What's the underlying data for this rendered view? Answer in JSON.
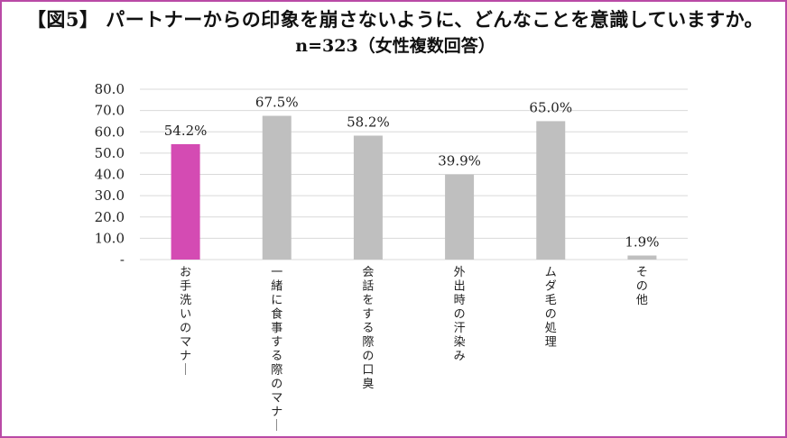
{
  "title": "【図5】 パートナーからの印象を崩さないように、どんなことを意識していますか。",
  "subtitle": "n=323（女性複数回答）",
  "colors": {
    "highlight": "#d44bb3",
    "bar": "#bfbfbf",
    "grid": "#d9d9d9",
    "border": "#b94aa6"
  },
  "chart_data": {
    "type": "bar",
    "categories": [
      "お手洗いのマナー",
      "一緒に食事する際のマナー",
      "会話をする際の口臭",
      "外出時の汗染み",
      "ムダ毛の処理",
      "その他"
    ],
    "values": [
      54.2,
      67.5,
      58.2,
      39.9,
      65.0,
      1.9
    ],
    "data_labels": [
      "54.2%",
      "67.5%",
      "58.2%",
      "39.9%",
      "65.0%",
      "1.9%"
    ],
    "highlight_index": 0,
    "ylim": [
      0,
      80
    ],
    "yticks": [
      0,
      10,
      20,
      30,
      40,
      50,
      60,
      70,
      80
    ],
    "ytick_labels": [
      "-",
      "10.0",
      "20.0",
      "30.0",
      "40.0",
      "50.0",
      "60.0",
      "70.0",
      "80.0"
    ],
    "grid": true,
    "legend": false
  }
}
